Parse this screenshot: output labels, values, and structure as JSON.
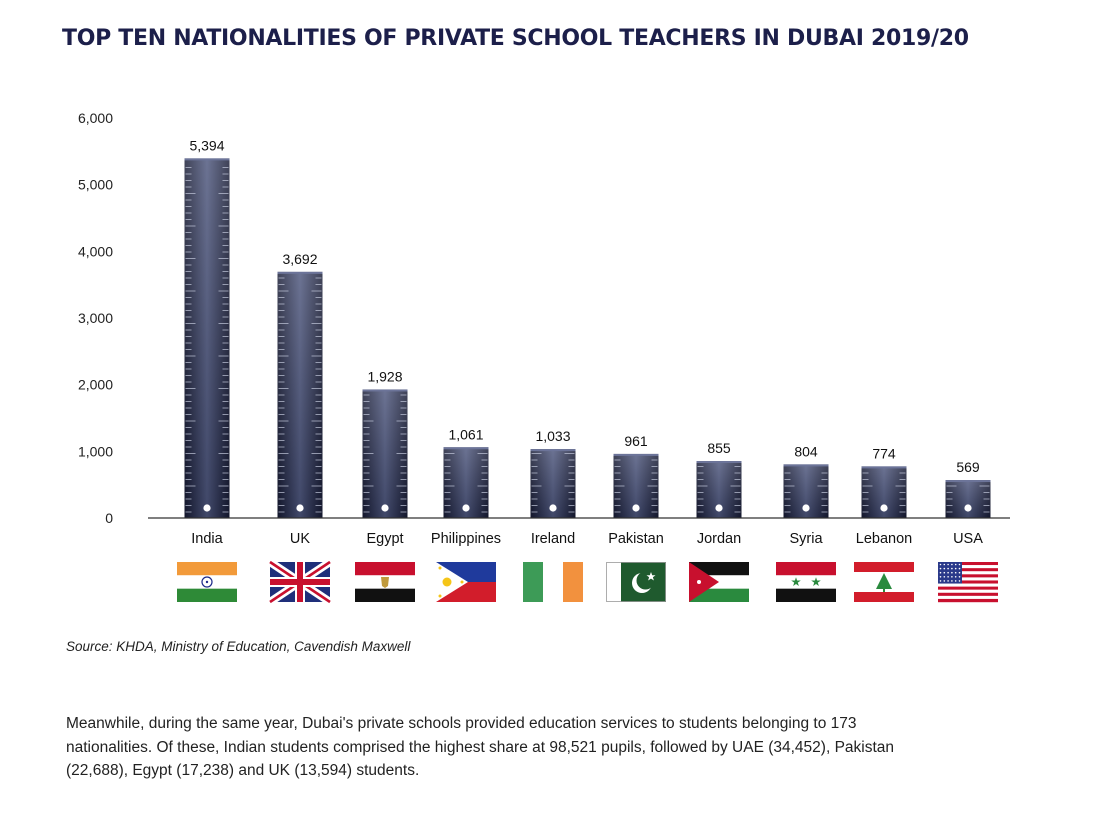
{
  "page": {
    "title": "TOP TEN NATIONALITIES OF PRIVATE SCHOOL TEACHERS IN DUBAI 2019/20",
    "source": "Source: KHDA, Ministry of Education, Cavendish Maxwell",
    "paragraph": "Meanwhile, during the same year, Dubai's private schools provided education services to students belonging to 173 nationalities. Of these, Indian students comprised the highest share at 98,521 pupils, followed by UAE (34,452), Pakistan (22,688), Egypt (17,238) and UK (13,594) students."
  },
  "colors": {
    "bar": "#1f2440",
    "bar_mid": "#454d72",
    "title": "#1c1f4a",
    "axis": "#222222"
  },
  "chart_data": {
    "type": "bar",
    "categories": [
      "India",
      "UK",
      "Egypt",
      "Philippines",
      "Ireland",
      "Pakistan",
      "Jordan",
      "Syria",
      "Lebanon",
      "USA"
    ],
    "values": [
      5394,
      3692,
      1928,
      1061,
      1033,
      961,
      855,
      804,
      774,
      569
    ],
    "value_labels": [
      "5,394",
      "3,692",
      "1,928",
      "1,061",
      "1,033",
      "961",
      "855",
      "804",
      "774",
      "569"
    ],
    "yticks": [
      "0",
      "1,000",
      "2,000",
      "3,000",
      "4,000",
      "5,000",
      "6,000"
    ],
    "ylim": [
      0,
      6000
    ],
    "grid": false,
    "legend": "none",
    "category_icons": [
      "flag-india",
      "flag-uk",
      "flag-egypt",
      "flag-philippines",
      "flag-ireland",
      "flag-pakistan",
      "flag-jordan",
      "flag-syria",
      "flag-lebanon",
      "flag-usa"
    ]
  }
}
